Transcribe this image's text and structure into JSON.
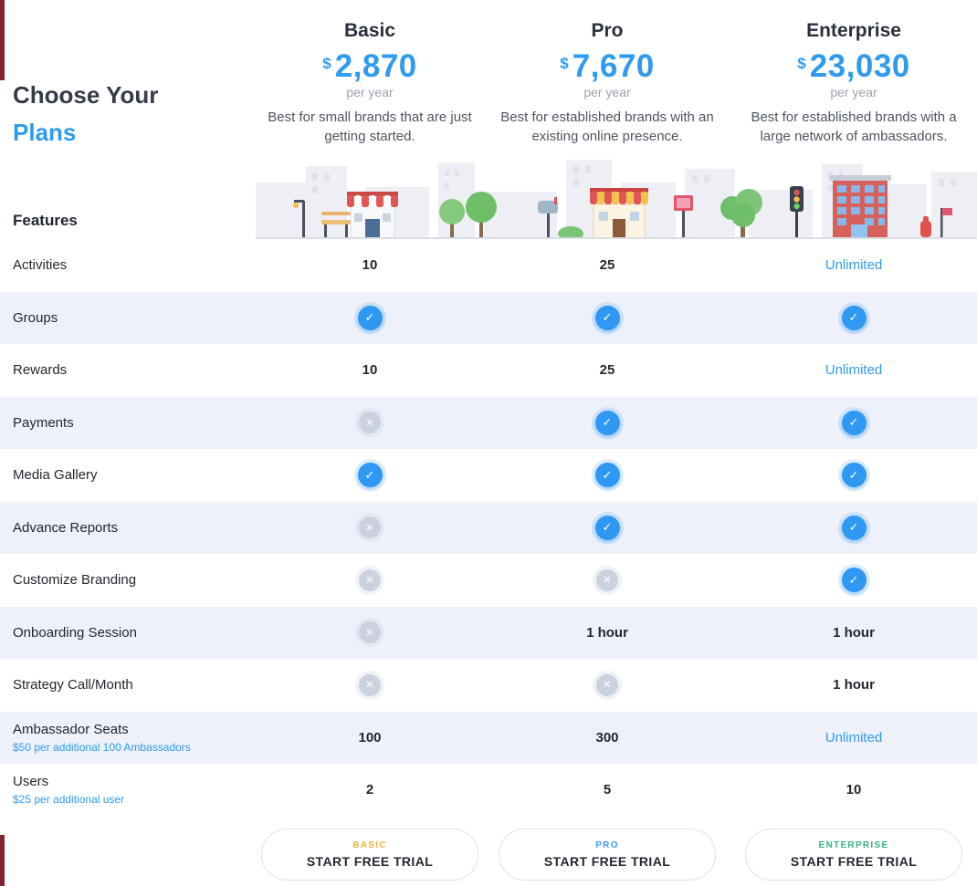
{
  "page": {
    "title_line1": "Choose Your",
    "title_line2": "Plans",
    "features_label": "Features"
  },
  "colors": {
    "accent_blue": "#2F9BEF",
    "check_fill": "#2F98F2",
    "cross_fill": "#CBD2DF",
    "row_alt": "#EEF1FA"
  },
  "icons": {
    "check": "✓",
    "cross": "✕"
  },
  "plans": [
    {
      "name": "Basic",
      "currency": "$",
      "price": "2,870",
      "period": "per year",
      "description": "Best for small brands that are just getting started.",
      "cta_tag": "BASIC",
      "cta_label": "START FREE TRIAL",
      "tag_color": "#EFB23D"
    },
    {
      "name": "Pro",
      "currency": "$",
      "price": "7,670",
      "period": "per year",
      "description": "Best for established brands with an existing online presence.",
      "cta_tag": "PRO",
      "cta_label": "START FREE TRIAL",
      "tag_color": "#3E9BEF"
    },
    {
      "name": "Enterprise",
      "currency": "$",
      "price": "23,030",
      "period": "per year",
      "description": "Best for established brands with a large network of ambassadors.",
      "cta_tag": "ENTERPRISE",
      "cta_label": "START FREE TRIAL",
      "tag_color": "#35B57F"
    }
  ],
  "features": [
    {
      "label": "Activities",
      "sublabel": "",
      "cells": [
        {
          "type": "text",
          "value": "10"
        },
        {
          "type": "text",
          "value": "25"
        },
        {
          "type": "highlight",
          "value": "Unlimited"
        }
      ]
    },
    {
      "label": "Groups",
      "sublabel": "",
      "cells": [
        {
          "type": "check"
        },
        {
          "type": "check"
        },
        {
          "type": "check"
        }
      ]
    },
    {
      "label": "Rewards",
      "sublabel": "",
      "cells": [
        {
          "type": "text",
          "value": "10"
        },
        {
          "type": "text",
          "value": "25"
        },
        {
          "type": "highlight",
          "value": "Unlimited"
        }
      ]
    },
    {
      "label": "Payments",
      "sublabel": "",
      "cells": [
        {
          "type": "cross"
        },
        {
          "type": "check"
        },
        {
          "type": "check"
        }
      ]
    },
    {
      "label": "Media Gallery",
      "sublabel": "",
      "cells": [
        {
          "type": "check"
        },
        {
          "type": "check"
        },
        {
          "type": "check"
        }
      ]
    },
    {
      "label": "Advance Reports",
      "sublabel": "",
      "cells": [
        {
          "type": "cross"
        },
        {
          "type": "check"
        },
        {
          "type": "check"
        }
      ]
    },
    {
      "label": "Customize Branding",
      "sublabel": "",
      "cells": [
        {
          "type": "cross"
        },
        {
          "type": "cross"
        },
        {
          "type": "check"
        }
      ]
    },
    {
      "label": "Onboarding Session",
      "sublabel": "",
      "cells": [
        {
          "type": "cross"
        },
        {
          "type": "text",
          "value": "1 hour"
        },
        {
          "type": "text",
          "value": "1 hour"
        }
      ]
    },
    {
      "label": "Strategy Call/Month",
      "sublabel": "",
      "cells": [
        {
          "type": "cross"
        },
        {
          "type": "cross"
        },
        {
          "type": "text",
          "value": "1 hour"
        }
      ]
    },
    {
      "label": "Ambassador Seats",
      "sublabel": "$50 per additional 100 Ambassadors",
      "cells": [
        {
          "type": "text",
          "value": "100"
        },
        {
          "type": "text",
          "value": "300"
        },
        {
          "type": "highlight",
          "value": "Unlimited"
        }
      ]
    },
    {
      "label": "Users",
      "sublabel": "$25 per additional user",
      "cells": [
        {
          "type": "text",
          "value": "2"
        },
        {
          "type": "text",
          "value": "5"
        },
        {
          "type": "text",
          "value": "10"
        }
      ]
    }
  ]
}
